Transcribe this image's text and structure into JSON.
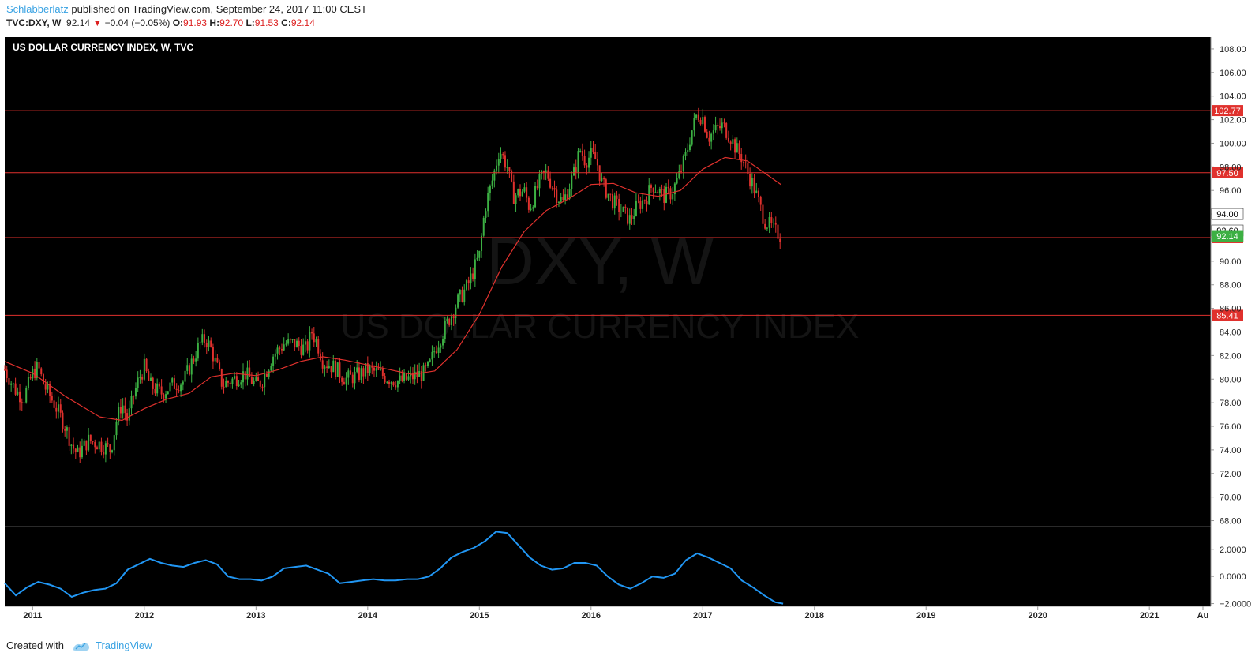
{
  "header": {
    "author": "Schlabberlatz",
    "published": "published on TradingView.com, September 24, 2017 11:00 CEST",
    "symbol": "TVC:DXY, W",
    "last": "92.14",
    "change": "−0.04 (−0.05%)",
    "o_label": "O:",
    "o_value": "91.93",
    "h_label": "H:",
    "h_value": "92.70",
    "l_label": "L:",
    "l_value": "91.53",
    "c_label": "C:",
    "c_value": "92.14"
  },
  "footer": {
    "created_with": "Created with",
    "brand": "TradingView"
  },
  "colors": {
    "background": "#000000",
    "up": "#3cb043",
    "down": "#e0312d",
    "ma": "#e0312d",
    "hline": "#e0312d",
    "oscillator": "#2196f3",
    "axis_text": "#222222"
  },
  "chart_data": [
    {
      "type": "candlestick",
      "title": "US DOLLAR CURRENCY INDEX, W, TVC",
      "watermark": "DXY, W",
      "watermark_sub": "US DOLLAR CURRENCY INDEX",
      "ylim": [
        67.5,
        109.0
      ],
      "y_ticks": [
        "108.00",
        "106.00",
        "104.00",
        "102.00",
        "100.00",
        "98.00",
        "96.00",
        "94.00",
        "92.00",
        "90.00",
        "88.00",
        "86.00",
        "84.00",
        "82.00",
        "80.00",
        "78.00",
        "76.00",
        "74.00",
        "72.00",
        "70.00",
        "68.00"
      ],
      "x_ticks": [
        "2011",
        "2012",
        "2013",
        "2014",
        "2015",
        "2016",
        "2017",
        "2018",
        "2019",
        "2020",
        "2021",
        "Au"
      ],
      "xlim": [
        2010.75,
        2021.55
      ],
      "horizontal_lines": [
        {
          "value": 102.77,
          "label": "102.77"
        },
        {
          "value": 97.5,
          "label": "97.50"
        },
        {
          "value": 92.0,
          "label": "92.00"
        },
        {
          "value": 85.41,
          "label": "85.41"
        }
      ],
      "price_labels": [
        {
          "value": 94.0,
          "label": "94.00",
          "style": "white"
        },
        {
          "value": 92.6,
          "label": "92.60",
          "style": "white"
        },
        {
          "value": 92.14,
          "label": "92.14",
          "style": "green"
        }
      ],
      "close_path": [
        [
          2010.75,
          80.8
        ],
        [
          2010.85,
          79.0
        ],
        [
          2010.92,
          78.4
        ],
        [
          2011.0,
          80.5
        ],
        [
          2011.05,
          81.0
        ],
        [
          2011.1,
          79.5
        ],
        [
          2011.2,
          77.8
        ],
        [
          2011.3,
          75.8
        ],
        [
          2011.35,
          74.4
        ],
        [
          2011.4,
          73.6
        ],
        [
          2011.5,
          74.8
        ],
        [
          2011.6,
          74.5
        ],
        [
          2011.7,
          74.0
        ],
        [
          2011.75,
          76.5
        ],
        [
          2011.8,
          78.0
        ],
        [
          2011.85,
          76.5
        ],
        [
          2011.9,
          78.5
        ],
        [
          2011.95,
          80.0
        ],
        [
          2012.0,
          81.0
        ],
        [
          2012.05,
          79.5
        ],
        [
          2012.15,
          78.8
        ],
        [
          2012.25,
          79.5
        ],
        [
          2012.35,
          79.8
        ],
        [
          2012.45,
          82.0
        ],
        [
          2012.5,
          83.0
        ],
        [
          2012.55,
          83.4
        ],
        [
          2012.6,
          82.5
        ],
        [
          2012.65,
          81.0
        ],
        [
          2012.7,
          79.5
        ],
        [
          2012.8,
          80.0
        ],
        [
          2012.9,
          80.5
        ],
        [
          2013.0,
          79.5
        ],
        [
          2013.05,
          79.8
        ],
        [
          2013.15,
          82.0
        ],
        [
          2013.25,
          83.0
        ],
        [
          2013.35,
          83.0
        ],
        [
          2013.45,
          82.5
        ],
        [
          2013.5,
          84.0
        ],
        [
          2013.55,
          83.0
        ],
        [
          2013.6,
          81.5
        ],
        [
          2013.7,
          81.0
        ],
        [
          2013.8,
          80.0
        ],
        [
          2013.9,
          80.3
        ],
        [
          2014.0,
          80.8
        ],
        [
          2014.1,
          80.5
        ],
        [
          2014.2,
          80.0
        ],
        [
          2014.3,
          79.8
        ],
        [
          2014.4,
          80.2
        ],
        [
          2014.5,
          80.5
        ],
        [
          2014.55,
          81.0
        ],
        [
          2014.6,
          82.5
        ],
        [
          2014.7,
          84.5
        ],
        [
          2014.8,
          86.5
        ],
        [
          2014.9,
          88.0
        ],
        [
          2015.0,
          90.5
        ],
        [
          2015.05,
          94.5
        ],
        [
          2015.12,
          97.0
        ],
        [
          2015.18,
          99.5
        ],
        [
          2015.25,
          98.0
        ],
        [
          2015.3,
          95.5
        ],
        [
          2015.4,
          96.0
        ],
        [
          2015.45,
          94.5
        ],
        [
          2015.55,
          97.0
        ],
        [
          2015.6,
          97.5
        ],
        [
          2015.7,
          95.5
        ],
        [
          2015.75,
          95.0
        ],
        [
          2015.85,
          97.5
        ],
        [
          2015.9,
          99.5
        ],
        [
          2015.95,
          98.5
        ],
        [
          2016.0,
          99.0
        ],
        [
          2016.05,
          98.5
        ],
        [
          2016.1,
          96.5
        ],
        [
          2016.2,
          95.0
        ],
        [
          2016.3,
          94.0
        ],
        [
          2016.35,
          93.5
        ],
        [
          2016.4,
          94.5
        ],
        [
          2016.5,
          95.5
        ],
        [
          2016.55,
          96.5
        ],
        [
          2016.65,
          95.5
        ],
        [
          2016.72,
          95.8
        ],
        [
          2016.78,
          97.0
        ],
        [
          2016.85,
          99.0
        ],
        [
          2016.9,
          101.0
        ],
        [
          2016.95,
          102.5
        ],
        [
          2017.0,
          102.2
        ],
        [
          2017.05,
          100.5
        ],
        [
          2017.1,
          101.0
        ],
        [
          2017.18,
          101.5
        ],
        [
          2017.25,
          100.5
        ],
        [
          2017.3,
          99.5
        ],
        [
          2017.35,
          98.8
        ],
        [
          2017.4,
          97.5
        ],
        [
          2017.45,
          96.5
        ],
        [
          2017.5,
          95.0
        ],
        [
          2017.55,
          93.5
        ],
        [
          2017.6,
          93.0
        ],
        [
          2017.65,
          92.5
        ],
        [
          2017.7,
          92.14
        ]
      ],
      "ma_path": [
        [
          2010.75,
          81.5
        ],
        [
          2011.0,
          80.5
        ],
        [
          2011.3,
          78.5
        ],
        [
          2011.6,
          76.8
        ],
        [
          2011.8,
          76.5
        ],
        [
          2012.0,
          77.5
        ],
        [
          2012.2,
          78.3
        ],
        [
          2012.4,
          78.8
        ],
        [
          2012.6,
          80.2
        ],
        [
          2012.8,
          80.5
        ],
        [
          2013.0,
          80.3
        ],
        [
          2013.2,
          80.8
        ],
        [
          2013.4,
          81.5
        ],
        [
          2013.6,
          81.9
        ],
        [
          2013.8,
          81.6
        ],
        [
          2014.0,
          81.2
        ],
        [
          2014.2,
          80.8
        ],
        [
          2014.4,
          80.4
        ],
        [
          2014.6,
          80.7
        ],
        [
          2014.8,
          82.5
        ],
        [
          2015.0,
          85.5
        ],
        [
          2015.2,
          89.5
        ],
        [
          2015.4,
          92.5
        ],
        [
          2015.6,
          94.3
        ],
        [
          2015.8,
          95.3
        ],
        [
          2016.0,
          96.5
        ],
        [
          2016.2,
          96.6
        ],
        [
          2016.4,
          95.8
        ],
        [
          2016.6,
          95.5
        ],
        [
          2016.8,
          96.0
        ],
        [
          2017.0,
          97.8
        ],
        [
          2017.2,
          98.8
        ],
        [
          2017.4,
          98.5
        ],
        [
          2017.55,
          97.5
        ],
        [
          2017.7,
          96.5
        ]
      ],
      "ohlc_scatter": 0.9
    },
    {
      "type": "line",
      "name": "oscillator",
      "ylim": [
        -2.2,
        3.5
      ],
      "y_ticks": [
        "2.0000",
        "0.0000",
        "−2.0000"
      ],
      "y_tick_values": [
        2.0,
        0.0,
        -2.0
      ],
      "points": [
        [
          2010.75,
          -0.5
        ],
        [
          2010.85,
          -1.4
        ],
        [
          2010.95,
          -0.8
        ],
        [
          2011.05,
          -0.4
        ],
        [
          2011.15,
          -0.6
        ],
        [
          2011.25,
          -0.9
        ],
        [
          2011.35,
          -1.5
        ],
        [
          2011.45,
          -1.2
        ],
        [
          2011.55,
          -1.0
        ],
        [
          2011.65,
          -0.9
        ],
        [
          2011.75,
          -0.5
        ],
        [
          2011.85,
          0.5
        ],
        [
          2011.95,
          0.9
        ],
        [
          2012.05,
          1.3
        ],
        [
          2012.15,
          1.0
        ],
        [
          2012.25,
          0.8
        ],
        [
          2012.35,
          0.7
        ],
        [
          2012.45,
          1.0
        ],
        [
          2012.55,
          1.2
        ],
        [
          2012.65,
          0.9
        ],
        [
          2012.75,
          0.0
        ],
        [
          2012.85,
          -0.2
        ],
        [
          2012.95,
          -0.2
        ],
        [
          2013.05,
          -0.3
        ],
        [
          2013.15,
          0.0
        ],
        [
          2013.25,
          0.6
        ],
        [
          2013.35,
          0.7
        ],
        [
          2013.45,
          0.8
        ],
        [
          2013.55,
          0.5
        ],
        [
          2013.65,
          0.2
        ],
        [
          2013.75,
          -0.5
        ],
        [
          2013.85,
          -0.4
        ],
        [
          2013.95,
          -0.3
        ],
        [
          2014.05,
          -0.2
        ],
        [
          2014.15,
          -0.3
        ],
        [
          2014.25,
          -0.3
        ],
        [
          2014.35,
          -0.2
        ],
        [
          2014.45,
          -0.2
        ],
        [
          2014.55,
          0.0
        ],
        [
          2014.65,
          0.6
        ],
        [
          2014.75,
          1.4
        ],
        [
          2014.85,
          1.8
        ],
        [
          2014.95,
          2.1
        ],
        [
          2015.05,
          2.6
        ],
        [
          2015.15,
          3.3
        ],
        [
          2015.25,
          3.2
        ],
        [
          2015.35,
          2.3
        ],
        [
          2015.45,
          1.4
        ],
        [
          2015.55,
          0.8
        ],
        [
          2015.65,
          0.5
        ],
        [
          2015.75,
          0.6
        ],
        [
          2015.85,
          1.0
        ],
        [
          2015.95,
          1.0
        ],
        [
          2016.05,
          0.8
        ],
        [
          2016.15,
          0.0
        ],
        [
          2016.25,
          -0.6
        ],
        [
          2016.35,
          -0.9
        ],
        [
          2016.45,
          -0.5
        ],
        [
          2016.55,
          0.0
        ],
        [
          2016.65,
          -0.1
        ],
        [
          2016.75,
          0.2
        ],
        [
          2016.85,
          1.2
        ],
        [
          2016.95,
          1.7
        ],
        [
          2017.05,
          1.4
        ],
        [
          2017.15,
          1.0
        ],
        [
          2017.25,
          0.6
        ],
        [
          2017.35,
          -0.3
        ],
        [
          2017.45,
          -0.8
        ],
        [
          2017.55,
          -1.4
        ],
        [
          2017.65,
          -1.9
        ],
        [
          2017.72,
          -2.0
        ]
      ]
    }
  ]
}
